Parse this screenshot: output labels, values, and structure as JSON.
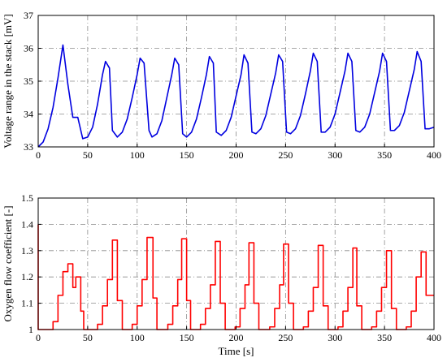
{
  "chart_data": [
    {
      "type": "line",
      "title": "",
      "xlabel": "",
      "ylabel": "Voltage range in the stack [mV]",
      "xlim": [
        0,
        400
      ],
      "ylim": [
        33,
        37
      ],
      "xticks": [
        0,
        50,
        100,
        150,
        200,
        250,
        300,
        350,
        400
      ],
      "yticks": [
        33,
        34,
        35,
        36,
        37
      ],
      "grid": true,
      "color": "#0000e0",
      "series": [
        {
          "values": [
            [
              0,
              33.0
            ],
            [
              5,
              33.15
            ],
            [
              10,
              33.55
            ],
            [
              15,
              34.2
            ],
            [
              20,
              35.1
            ],
            [
              25,
              36.1
            ],
            [
              30,
              34.9
            ],
            [
              35,
              33.9
            ],
            [
              40,
              33.9
            ],
            [
              45,
              33.25
            ],
            [
              50,
              33.3
            ],
            [
              55,
              33.6
            ],
            [
              60,
              34.3
            ],
            [
              65,
              35.2
            ],
            [
              68,
              35.6
            ],
            [
              72,
              35.4
            ],
            [
              75,
              33.5
            ],
            [
              80,
              33.3
            ],
            [
              85,
              33.45
            ],
            [
              90,
              33.85
            ],
            [
              95,
              34.5
            ],
            [
              100,
              35.2
            ],
            [
              103,
              35.7
            ],
            [
              107,
              35.55
            ],
            [
              112,
              33.5
            ],
            [
              115,
              33.3
            ],
            [
              120,
              33.4
            ],
            [
              125,
              33.8
            ],
            [
              130,
              34.5
            ],
            [
              135,
              35.2
            ],
            [
              138,
              35.7
            ],
            [
              142,
              35.5
            ],
            [
              146,
              33.4
            ],
            [
              150,
              33.3
            ],
            [
              155,
              33.45
            ],
            [
              160,
              33.85
            ],
            [
              165,
              34.5
            ],
            [
              170,
              35.2
            ],
            [
              173,
              35.75
            ],
            [
              177,
              35.55
            ],
            [
              180,
              33.45
            ],
            [
              185,
              33.35
            ],
            [
              190,
              33.5
            ],
            [
              195,
              33.9
            ],
            [
              200,
              34.55
            ],
            [
              205,
              35.2
            ],
            [
              208,
              35.8
            ],
            [
              212,
              35.55
            ],
            [
              216,
              33.45
            ],
            [
              220,
              33.4
            ],
            [
              225,
              33.55
            ],
            [
              230,
              33.95
            ],
            [
              235,
              34.6
            ],
            [
              240,
              35.25
            ],
            [
              243,
              35.8
            ],
            [
              247,
              35.6
            ],
            [
              251,
              33.45
            ],
            [
              255,
              33.4
            ],
            [
              260,
              33.55
            ],
            [
              265,
              33.95
            ],
            [
              270,
              34.6
            ],
            [
              275,
              35.3
            ],
            [
              278,
              35.85
            ],
            [
              282,
              35.6
            ],
            [
              286,
              33.45
            ],
            [
              290,
              33.45
            ],
            [
              295,
              33.6
            ],
            [
              300,
              34.0
            ],
            [
              305,
              34.65
            ],
            [
              310,
              35.3
            ],
            [
              313,
              35.85
            ],
            [
              317,
              35.6
            ],
            [
              321,
              33.5
            ],
            [
              325,
              33.45
            ],
            [
              330,
              33.6
            ],
            [
              335,
              34.0
            ],
            [
              340,
              34.65
            ],
            [
              345,
              35.3
            ],
            [
              348,
              35.85
            ],
            [
              352,
              35.6
            ],
            [
              356,
              33.5
            ],
            [
              360,
              33.5
            ],
            [
              365,
              33.65
            ],
            [
              370,
              34.05
            ],
            [
              375,
              34.7
            ],
            [
              380,
              35.35
            ],
            [
              383,
              35.9
            ],
            [
              387,
              35.6
            ],
            [
              391,
              33.55
            ],
            [
              395,
              33.55
            ],
            [
              400,
              33.6
            ]
          ]
        }
      ]
    },
    {
      "type": "line",
      "title": "",
      "xlabel": "Time [s]",
      "ylabel": "Oxygen flow coefficient [-]",
      "xlim": [
        0,
        400
      ],
      "ylim": [
        1,
        1.5
      ],
      "xticks": [
        0,
        50,
        100,
        150,
        200,
        250,
        300,
        350,
        400
      ],
      "yticks": [
        1,
        1.1,
        1.2,
        1.3,
        1.4,
        1.5
      ],
      "grid": true,
      "color": "#ff0000",
      "series": [
        {
          "values": [
            [
              0,
              1.4
            ],
            [
              0,
              1.0
            ],
            [
              15,
              1.0
            ],
            [
              15,
              1.03
            ],
            [
              20,
              1.03
            ],
            [
              20,
              1.13
            ],
            [
              25,
              1.13
            ],
            [
              25,
              1.22
            ],
            [
              30,
              1.22
            ],
            [
              30,
              1.25
            ],
            [
              35,
              1.25
            ],
            [
              35,
              1.16
            ],
            [
              38,
              1.16
            ],
            [
              38,
              1.2
            ],
            [
              43,
              1.2
            ],
            [
              43,
              1.07
            ],
            [
              46,
              1.07
            ],
            [
              46,
              1.0
            ],
            [
              60,
              1.0
            ],
            [
              60,
              1.02
            ],
            [
              65,
              1.02
            ],
            [
              65,
              1.09
            ],
            [
              70,
              1.09
            ],
            [
              70,
              1.19
            ],
            [
              75,
              1.19
            ],
            [
              75,
              1.34
            ],
            [
              80,
              1.34
            ],
            [
              80,
              1.11
            ],
            [
              85,
              1.11
            ],
            [
              85,
              1.0
            ],
            [
              95,
              1.0
            ],
            [
              95,
              1.02
            ],
            [
              100,
              1.02
            ],
            [
              100,
              1.09
            ],
            [
              105,
              1.09
            ],
            [
              105,
              1.19
            ],
            [
              110,
              1.19
            ],
            [
              110,
              1.35
            ],
            [
              116,
              1.35
            ],
            [
              116,
              1.12
            ],
            [
              120,
              1.12
            ],
            [
              120,
              1.0
            ],
            [
              131,
              1.0
            ],
            [
              131,
              1.02
            ],
            [
              136,
              1.02
            ],
            [
              136,
              1.09
            ],
            [
              141,
              1.09
            ],
            [
              141,
              1.19
            ],
            [
              145,
              1.19
            ],
            [
              145,
              1.345
            ],
            [
              150,
              1.345
            ],
            [
              150,
              1.11
            ],
            [
              154,
              1.11
            ],
            [
              154,
              1.0
            ],
            [
              164,
              1.0
            ],
            [
              164,
              1.02
            ],
            [
              169,
              1.02
            ],
            [
              169,
              1.08
            ],
            [
              174,
              1.08
            ],
            [
              174,
              1.17
            ],
            [
              179,
              1.17
            ],
            [
              179,
              1.335
            ],
            [
              184,
              1.335
            ],
            [
              184,
              1.1
            ],
            [
              189,
              1.1
            ],
            [
              189,
              1.0
            ],
            [
              199,
              1.0
            ],
            [
              199,
              1.01
            ],
            [
              204,
              1.01
            ],
            [
              204,
              1.08
            ],
            [
              209,
              1.08
            ],
            [
              209,
              1.17
            ],
            [
              213,
              1.17
            ],
            [
              213,
              1.33
            ],
            [
              218,
              1.33
            ],
            [
              218,
              1.1
            ],
            [
              223,
              1.1
            ],
            [
              223,
              1.0
            ],
            [
              234,
              1.0
            ],
            [
              234,
              1.01
            ],
            [
              239,
              1.01
            ],
            [
              239,
              1.08
            ],
            [
              244,
              1.08
            ],
            [
              244,
              1.17
            ],
            [
              248,
              1.17
            ],
            [
              248,
              1.325
            ],
            [
              253,
              1.325
            ],
            [
              253,
              1.1
            ],
            [
              258,
              1.1
            ],
            [
              258,
              1.0
            ],
            [
              268,
              1.0
            ],
            [
              268,
              1.01
            ],
            [
              273,
              1.01
            ],
            [
              273,
              1.07
            ],
            [
              278,
              1.07
            ],
            [
              278,
              1.16
            ],
            [
              283,
              1.16
            ],
            [
              283,
              1.32
            ],
            [
              288,
              1.32
            ],
            [
              288,
              1.09
            ],
            [
              293,
              1.09
            ],
            [
              293,
              1.0
            ],
            [
              303,
              1.0
            ],
            [
              303,
              1.01
            ],
            [
              308,
              1.01
            ],
            [
              308,
              1.07
            ],
            [
              313,
              1.07
            ],
            [
              313,
              1.16
            ],
            [
              318,
              1.16
            ],
            [
              318,
              1.31
            ],
            [
              322,
              1.31
            ],
            [
              322,
              1.09
            ],
            [
              327,
              1.09
            ],
            [
              327,
              1.0
            ],
            [
              337,
              1.0
            ],
            [
              337,
              1.01
            ],
            [
              342,
              1.01
            ],
            [
              342,
              1.07
            ],
            [
              347,
              1.07
            ],
            [
              347,
              1.16
            ],
            [
              352,
              1.16
            ],
            [
              352,
              1.3
            ],
            [
              357,
              1.3
            ],
            [
              357,
              1.08
            ],
            [
              362,
              1.08
            ],
            [
              362,
              1.0
            ],
            [
              372,
              1.0
            ],
            [
              372,
              1.01
            ],
            [
              377,
              1.01
            ],
            [
              377,
              1.07
            ],
            [
              382,
              1.07
            ],
            [
              382,
              1.2
            ],
            [
              387,
              1.2
            ],
            [
              387,
              1.295
            ],
            [
              392,
              1.295
            ],
            [
              392,
              1.13
            ],
            [
              400,
              1.13
            ]
          ]
        }
      ]
    }
  ]
}
